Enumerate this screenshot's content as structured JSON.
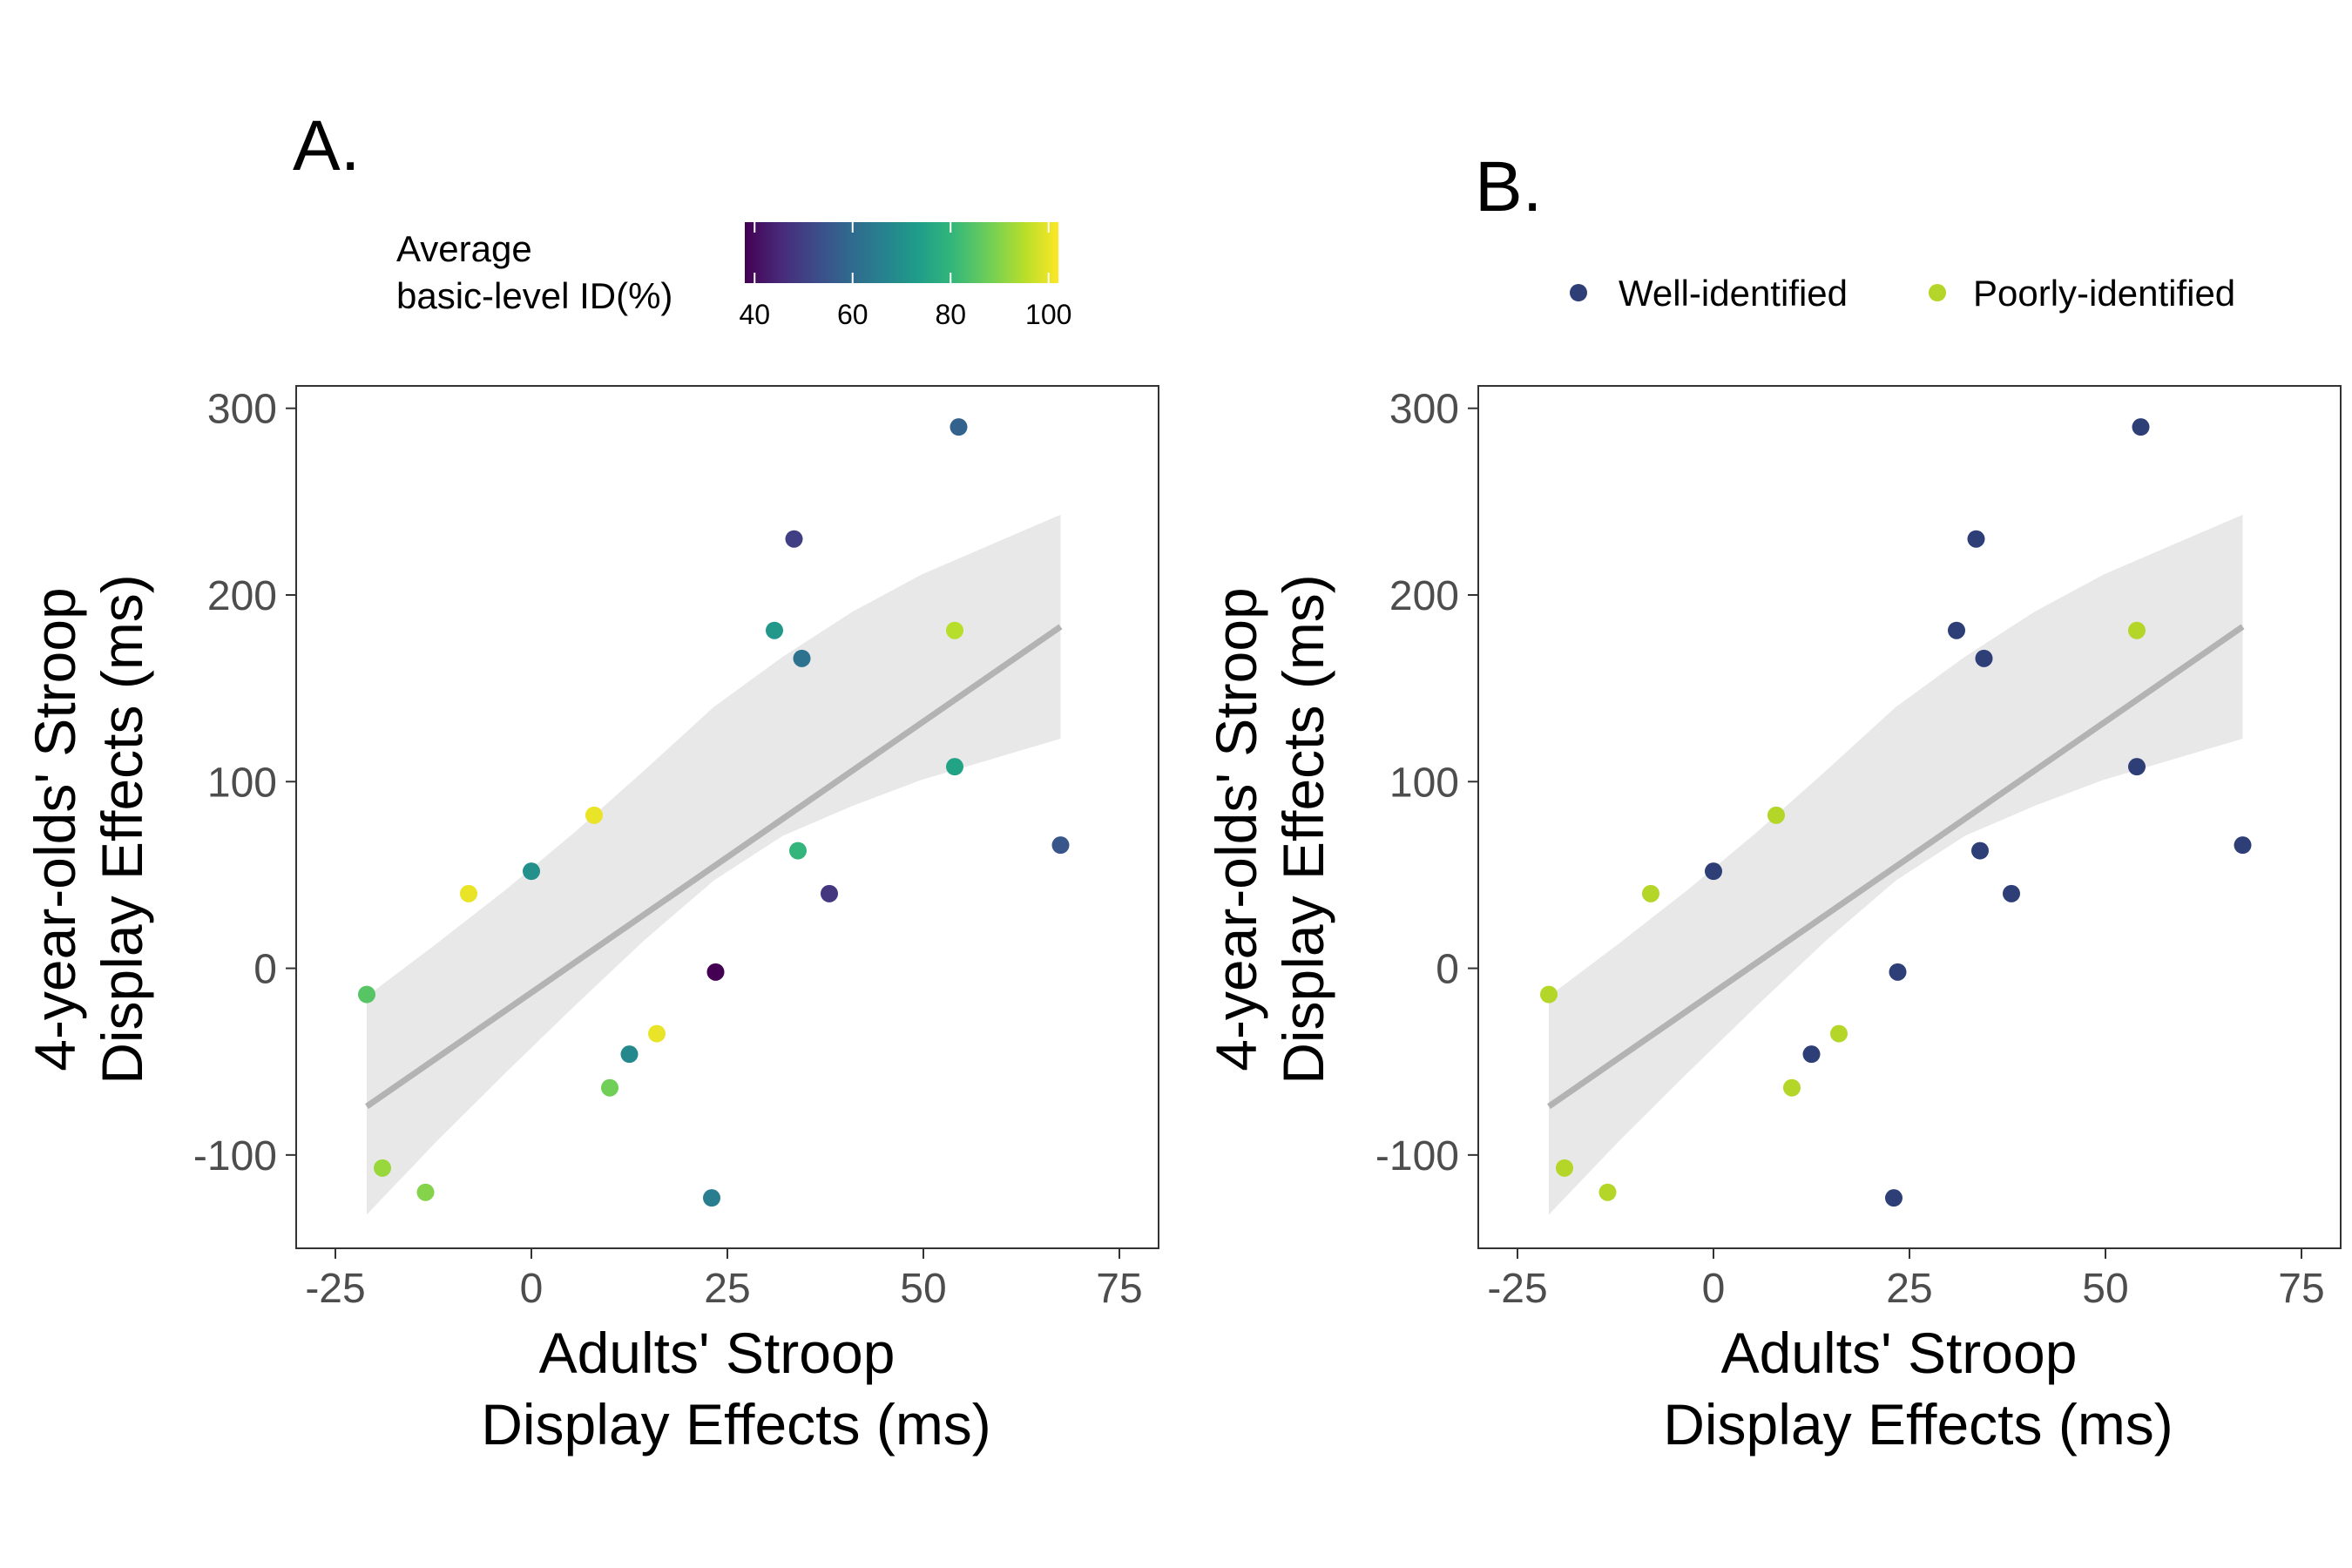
{
  "chart_data": [
    {
      "type": "scatter",
      "panel_label": "A.",
      "xlabel_lines": [
        "Adults' Stroop",
        "Display Effects (ms)"
      ],
      "ylabel_lines": [
        "4-year-olds' Stroop",
        "Display Effects (ms)"
      ],
      "xlim": [
        -30,
        80
      ],
      "ylim": [
        -150,
        312
      ],
      "xticks": [
        -25,
        0,
        25,
        50,
        75
      ],
      "xtick_labels": [
        "-25",
        "0",
        "25",
        "50",
        "75"
      ],
      "yticks": [
        -100,
        0,
        100,
        200,
        300
      ],
      "ytick_labels": [
        "-100",
        "0",
        "100",
        "200",
        "300"
      ],
      "grid": false,
      "colorbar": {
        "title_lines": [
          "Average",
          "basic-level ID(%)"
        ],
        "range": [
          38,
          102
        ],
        "ticks": [
          40,
          60,
          80,
          100
        ],
        "tick_labels": [
          "40",
          "60",
          "80",
          "100"
        ],
        "palette": [
          "#440154",
          "#482878",
          "#3e4a89",
          "#31688e",
          "#26828e",
          "#1f9e89",
          "#35b779",
          "#6ece58",
          "#b5de2b",
          "#fde725"
        ]
      },
      "points": [
        {
          "x": 54.5,
          "y": 290,
          "id": 58
        },
        {
          "x": 33.5,
          "y": 230,
          "id": 50
        },
        {
          "x": 31,
          "y": 181,
          "id": 72
        },
        {
          "x": 34.5,
          "y": 166,
          "id": 62
        },
        {
          "x": 54,
          "y": 181,
          "id": 95
        },
        {
          "x": 54,
          "y": 108,
          "id": 75
        },
        {
          "x": 67.5,
          "y": 66,
          "id": 55
        },
        {
          "x": 34,
          "y": 63,
          "id": 80
        },
        {
          "x": 38,
          "y": 40,
          "id": 48
        },
        {
          "x": 8,
          "y": 82,
          "id": 100
        },
        {
          "x": 0,
          "y": 52,
          "id": 70
        },
        {
          "x": -8,
          "y": 40,
          "id": 100
        },
        {
          "x": 23.5,
          "y": -2,
          "id": 38
        },
        {
          "x": -21,
          "y": -14,
          "id": 85
        },
        {
          "x": 16,
          "y": -35,
          "id": 100
        },
        {
          "x": 12.5,
          "y": -46,
          "id": 68
        },
        {
          "x": 10,
          "y": -64,
          "id": 88
        },
        {
          "x": -19,
          "y": -107,
          "id": 92
        },
        {
          "x": -13.5,
          "y": -120,
          "id": 90
        },
        {
          "x": 23,
          "y": -123,
          "id": 65
        }
      ],
      "fit": {
        "x_range": [
          -21,
          67.5
        ],
        "y_at_x0": -74,
        "y_at_x1": 183,
        "ci_low": [
          -132,
          -93,
          -56,
          -20,
          15,
          47,
          71,
          87,
          101,
          112,
          123
        ],
        "ci_high": [
          -15,
          13,
          42,
          73,
          106,
          140,
          167,
          191,
          211,
          227,
          243
        ],
        "color": "#b3b3b3"
      }
    },
    {
      "type": "scatter",
      "panel_label": "B.",
      "xlabel_lines": [
        "Adults' Stroop",
        "Display Effects (ms)"
      ],
      "ylabel_lines": [
        "4-year-olds' Stroop",
        "Display Effects (ms)"
      ],
      "xlim": [
        -30,
        80
      ],
      "ylim": [
        -150,
        312
      ],
      "xticks": [
        -25,
        0,
        25,
        50,
        75
      ],
      "xtick_labels": [
        "-25",
        "0",
        "25",
        "50",
        "75"
      ],
      "yticks": [
        -100,
        0,
        100,
        200,
        300
      ],
      "ytick_labels": [
        "-100",
        "0",
        "100",
        "200",
        "300"
      ],
      "grid": false,
      "legend": [
        {
          "label": "Well-identified",
          "color": "#2e3f78"
        },
        {
          "label": "Poorly-identified",
          "color": "#b4d629"
        }
      ],
      "points": [
        {
          "x": 54.5,
          "y": 290,
          "group": 0
        },
        {
          "x": 33.5,
          "y": 230,
          "group": 0
        },
        {
          "x": 31,
          "y": 181,
          "group": 0
        },
        {
          "x": 34.5,
          "y": 166,
          "group": 0
        },
        {
          "x": 54,
          "y": 181,
          "group": 1
        },
        {
          "x": 54,
          "y": 108,
          "group": 0
        },
        {
          "x": 67.5,
          "y": 66,
          "group": 0
        },
        {
          "x": 34,
          "y": 63,
          "group": 0
        },
        {
          "x": 38,
          "y": 40,
          "group": 0
        },
        {
          "x": 8,
          "y": 82,
          "group": 1
        },
        {
          "x": 0,
          "y": 52,
          "group": 0
        },
        {
          "x": -8,
          "y": 40,
          "group": 1
        },
        {
          "x": 23.5,
          "y": -2,
          "group": 0
        },
        {
          "x": -21,
          "y": -14,
          "group": 1
        },
        {
          "x": 16,
          "y": -35,
          "group": 1
        },
        {
          "x": 12.5,
          "y": -46,
          "group": 0
        },
        {
          "x": 10,
          "y": -64,
          "group": 1
        },
        {
          "x": -19,
          "y": -107,
          "group": 1
        },
        {
          "x": -13.5,
          "y": -120,
          "group": 1
        },
        {
          "x": 23,
          "y": -123,
          "group": 0
        }
      ],
      "fit": {
        "x_range": [
          -21,
          67.5
        ],
        "y_at_x0": -74,
        "y_at_x1": 183,
        "ci_low": [
          -132,
          -93,
          -56,
          -20,
          15,
          47,
          71,
          87,
          101,
          112,
          123
        ],
        "ci_high": [
          -15,
          13,
          42,
          73,
          106,
          140,
          167,
          191,
          211,
          227,
          243
        ],
        "color": "#b3b3b3"
      }
    }
  ]
}
